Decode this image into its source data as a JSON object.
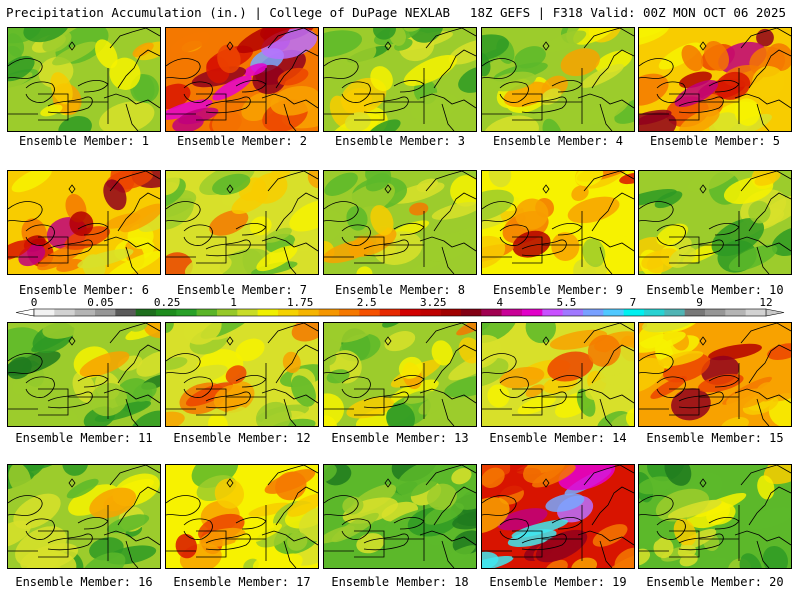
{
  "header": {
    "title": "Precipitation Accumulation (in.) | College of DuPage NEXLAB",
    "valid": "18Z GEFS | F318 Valid: 00Z MON OCT 06 2025"
  },
  "label_prefix": "Ensemble Member:",
  "members": [
    {
      "label": "Ensemble Member: 1",
      "intensity": 0.25
    },
    {
      "label": "Ensemble Member: 2",
      "intensity": 0.8
    },
    {
      "label": "Ensemble Member: 3",
      "intensity": 0.2
    },
    {
      "label": "Ensemble Member: 4",
      "intensity": 0.22
    },
    {
      "label": "Ensemble Member: 5",
      "intensity": 0.6
    },
    {
      "label": "Ensemble Member: 6",
      "intensity": 0.6
    },
    {
      "label": "Ensemble Member: 7",
      "intensity": 0.35
    },
    {
      "label": "Ensemble Member: 8",
      "intensity": 0.25
    },
    {
      "label": "Ensemble Member: 9",
      "intensity": 0.45
    },
    {
      "label": "Ensemble Member: 10",
      "intensity": 0.18
    },
    {
      "label": "Ensemble Member: 11",
      "intensity": 0.2
    },
    {
      "label": "Ensemble Member: 12",
      "intensity": 0.35
    },
    {
      "label": "Ensemble Member: 13",
      "intensity": 0.25
    },
    {
      "label": "Ensemble Member: 14",
      "intensity": 0.35
    },
    {
      "label": "Ensemble Member: 15",
      "intensity": 0.65
    },
    {
      "label": "Ensemble Member: 16",
      "intensity": 0.2
    },
    {
      "label": "Ensemble Member: 17",
      "intensity": 0.4
    },
    {
      "label": "Ensemble Member: 18",
      "intensity": 0.1
    },
    {
      "label": "Ensemble Member: 19",
      "intensity": 0.95
    },
    {
      "label": "Ensemble Member: 20",
      "intensity": 0.15
    }
  ],
  "legend": {
    "labels": [
      "0",
      "0.05",
      "0.25",
      "1",
      "1.75",
      "2.5",
      "3.25",
      "4",
      "5.5",
      "7",
      "9",
      "12"
    ],
    "colors": [
      "#f2f2f2",
      "#d2d2d2",
      "#b4b4b4",
      "#969696",
      "#5a5a5a",
      "#1e6e1e",
      "#1e8c1e",
      "#28a028",
      "#5ab428",
      "#96c828",
      "#c8dc28",
      "#f0f000",
      "#f5d200",
      "#f5b400",
      "#f59600",
      "#f57800",
      "#f55000",
      "#e62800",
      "#d20000",
      "#be0000",
      "#a00000",
      "#820014",
      "#a00050",
      "#c80096",
      "#e100c8",
      "#c850ff",
      "#a078ff",
      "#78a0ff",
      "#50c8ff",
      "#00f0f0",
      "#28d2d2",
      "#50b4b4",
      "#787878",
      "#969696",
      "#b4b4b4",
      "#d2d2d2"
    ]
  },
  "colors": {
    "background": "#ffffff",
    "map_lines": "#000000"
  }
}
